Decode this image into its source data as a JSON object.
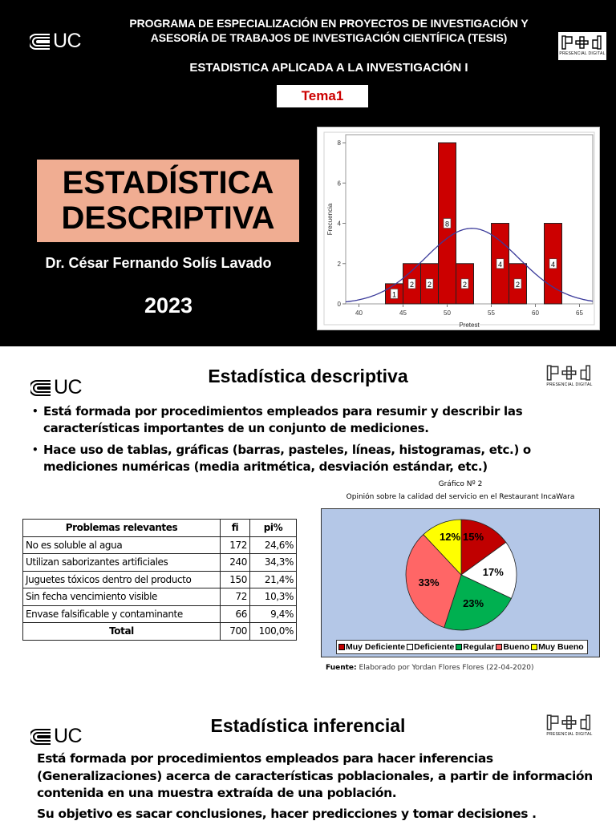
{
  "slide1": {
    "uc_logo": "UC",
    "program_line1": "PROGRAMA DE ESPECIALIZACIÓN EN PROYECTOS DE INVESTIGACIÓN Y",
    "program_line2": "ASESORÍA DE TRABAJOS DE INVESTIGACIÓN CIENTÍFICA (TESIS)",
    "course": "ESTADISTICA APLICADA A LA INVESTIGACIÓN I",
    "tema": "Tema1",
    "pd_logo": "P+d",
    "pd_caption": "PRESENCIAL DIGITAL",
    "title_line1": "ESTADÍSTICA",
    "title_line2": "DESCRIPTIVA",
    "author": "Dr. César Fernando Solís Lavado",
    "year": "2023"
  },
  "slide2": {
    "uc_logo": "UC",
    "title": "Estadística descriptiva",
    "pd_logo": "P+d",
    "pd_caption": "PRESENCIAL DIGITAL",
    "bullets": [
      "Está formada por procedimientos empleados para resumir y describir las características importantes de un conjunto de mediciones.",
      "Hace uso de tablas, gráficas (barras, pasteles, líneas, histogramas, etc.) o mediciones numéricas (media aritmética, desviación estándar, etc.)"
    ],
    "table": {
      "headers": [
        "Problemas relevantes",
        "fi",
        "pi%"
      ],
      "rows": [
        [
          "No es soluble al agua",
          "172",
          "24,6%"
        ],
        [
          "Utilizan saborizantes artificiales",
          "240",
          "34,3%"
        ],
        [
          "Juguetes tóxicos dentro del producto",
          "150",
          "21,4%"
        ],
        [
          "Sin fecha vencimiento visible",
          "72",
          "10,3%"
        ],
        [
          "Envase falsificable y contaminante",
          "66",
          "9,4%"
        ]
      ],
      "total": [
        "Total",
        "700",
        "100,0%"
      ]
    },
    "pie": {
      "number": "Gráfico Nº 2",
      "title": "Opinión sobre la calidad del servicio en el Restaurant IncaWara",
      "source_label": "Fuente:",
      "source_text": "Elaborado por Yordan Flores Flores (22-04-2020)"
    }
  },
  "slide3": {
    "uc_logo": "UC",
    "title": "Estadística inferencial",
    "pd_logo": "P+d",
    "pd_caption": "PRESENCIAL DIGITAL",
    "paragraph1": "Está formada por procedimientos empleados para hacer inferencias (Generalizaciones) acerca de características poblacionales, a partir de información contenida en una muestra extraída de una población.",
    "paragraph2": "Su objetivo es sacar conclusiones, hacer predicciones y tomar decisiones ."
  },
  "colors": {
    "title_box": "#f0ad92",
    "tema_text": "#cc0000",
    "hist_bar": "#cc0000",
    "normal_curve": "#3a3a9a",
    "pie_background": "#b4c7e7"
  },
  "chart_data": [
    {
      "type": "bar",
      "subtype": "histogram",
      "title": "",
      "xlabel": "Pretest",
      "ylabel": "Frecuencia",
      "bins": [
        [
          43,
          45
        ],
        [
          45,
          47
        ],
        [
          47,
          49
        ],
        [
          49,
          51
        ],
        [
          51,
          53
        ],
        [
          55,
          57
        ],
        [
          57,
          59
        ],
        [
          61,
          63
        ]
      ],
      "values": [
        1,
        2,
        2,
        8,
        2,
        4,
        2,
        4
      ],
      "bar_labels": [
        "1",
        "2",
        "2",
        "8",
        "2",
        "4",
        "2",
        "4"
      ],
      "xticks": [
        40,
        45,
        50,
        55,
        60,
        65
      ],
      "yticks": [
        0,
        2,
        4,
        6,
        8
      ],
      "xlim": [
        38.5,
        66.5
      ],
      "ylim": [
        0,
        8.4
      ],
      "overlay": {
        "type": "normal_curve",
        "mean": 52.8,
        "peak": 3.75
      },
      "grid": false,
      "legend": "none"
    },
    {
      "type": "pie",
      "title": "Gráfico Nº 2 — Opinión sobre la calidad del servicio en el Restaurant IncaWara",
      "categories": [
        "Muy Deficiente",
        "Deficiente",
        "Regular",
        "Bueno",
        "Muy Bueno"
      ],
      "values": [
        15,
        17,
        23,
        33,
        12
      ],
      "labels": [
        "15%",
        "17%",
        "23%",
        "33%",
        "12%"
      ],
      "colors": [
        "#c00000",
        "#ffffff",
        "#00b050",
        "#ff6666",
        "#ffff00"
      ],
      "legend_position": "bottom"
    }
  ]
}
